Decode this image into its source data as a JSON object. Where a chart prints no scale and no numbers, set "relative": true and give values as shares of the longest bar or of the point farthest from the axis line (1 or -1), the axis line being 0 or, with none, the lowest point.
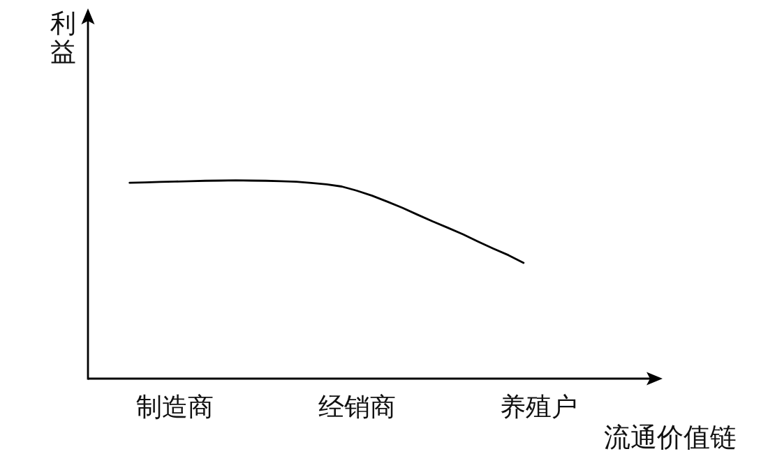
{
  "chart_data": {
    "type": "line",
    "relative": true,
    "xlabel": "流通价值链",
    "ylabel": "利益",
    "categories": [
      null,
      null,
      null,
      "制造商",
      null,
      null,
      null,
      null,
      null,
      null,
      null,
      null,
      null,
      null,
      null,
      "经销商",
      null,
      null,
      null,
      null,
      null,
      null,
      null,
      null,
      null,
      null,
      null,
      "养殖户"
    ],
    "series": [
      {
        "color": "#000000",
        "values": [
          0.988,
          0.99,
          0.992,
          0.994,
          0.996,
          0.998,
          0.999,
          1.0,
          0.999,
          0.998,
          0.996,
          0.993,
          0.987,
          0.98,
          0.969,
          0.948,
          0.923,
          0.893,
          0.862,
          0.827,
          0.793,
          0.761,
          0.728,
          0.691,
          0.656,
          0.623,
          0.584,
          null
        ]
      }
    ]
  }
}
